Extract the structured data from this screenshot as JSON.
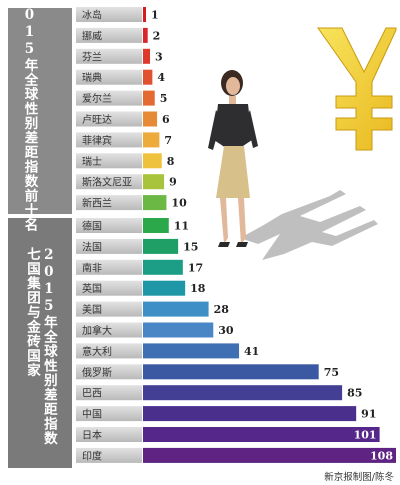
{
  "chart_data": {
    "type": "bar",
    "orientation": "horizontal",
    "groups": [
      {
        "title": "2015年全球性别差距指数前十名",
        "categories": [
          "冰岛",
          "挪威",
          "芬兰",
          "瑞典",
          "爱尔兰",
          "卢旺达",
          "菲律宾",
          "瑞士",
          "斯洛文尼亚",
          "新西兰"
        ],
        "values": [
          1,
          2,
          3,
          4,
          5,
          6,
          7,
          8,
          9,
          10
        ]
      },
      {
        "title": "2015年全球性别差距指数七国集团与金砖国家",
        "categories": [
          "德国",
          "法国",
          "南非",
          "英国",
          "美国",
          "加拿大",
          "意大利",
          "俄罗斯",
          "巴西",
          "中国",
          "日本",
          "印度"
        ],
        "values": [
          11,
          15,
          17,
          18,
          28,
          30,
          41,
          75,
          85,
          91,
          101,
          108
        ]
      }
    ],
    "bar_colors": [
      "#d71920",
      "#d9262a",
      "#de3a2c",
      "#e0512f",
      "#e36a31",
      "#e78a35",
      "#ecab3a",
      "#eec23d",
      "#a8c43c",
      "#6cb845",
      "#2aa84a",
      "#1f9f66",
      "#1c9d86",
      "#1f97a7",
      "#3d8fc6",
      "#4a86c6",
      "#3f70b4",
      "#3b59a3",
      "#433f95",
      "#4a2f8c",
      "#55278a",
      "#5f2383"
    ],
    "xlim": [
      0,
      108
    ]
  },
  "credit": "新京报制图/陈冬",
  "colors": {
    "panel_top": "#8a8a8a",
    "panel_bottom": "#7a7a7a",
    "label_bg": "#c9c9c9"
  }
}
